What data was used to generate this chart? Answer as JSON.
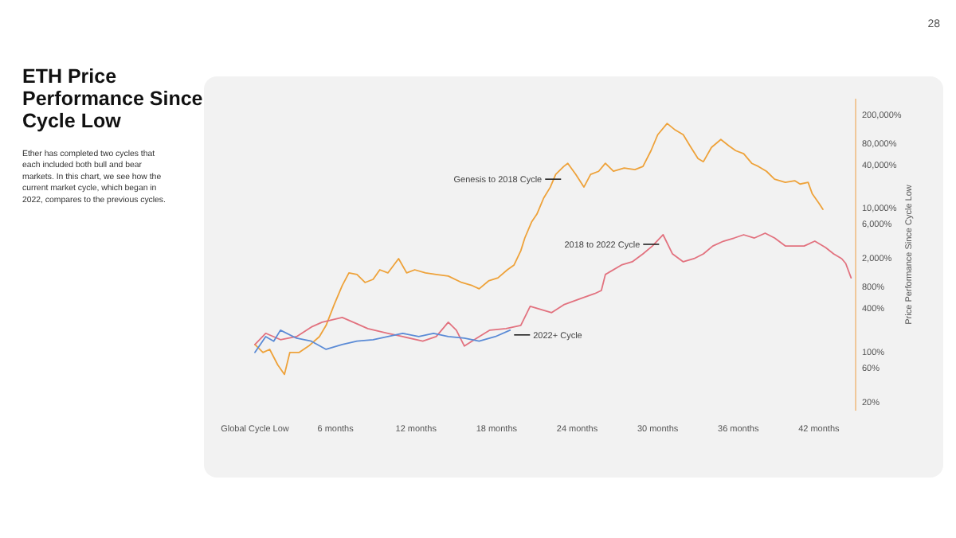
{
  "chart_data": {
    "type": "line",
    "title": "ETH Price Performance Since Cycle Low",
    "subtitle": "Ether has completed two cycles that each included both bull and bear markets. In this chart, we see how the current market cycle, which began in 2022, compares to the previous cycles.",
    "ylabel": "Price Performance Since Cycle Low",
    "log": "y",
    "grid": false,
    "marker": "none",
    "line_style": "solid",
    "xlim": [
      0,
      44.5
    ],
    "xticks": [
      {
        "value": 0,
        "label": "Global Cycle Low"
      },
      {
        "value": 6,
        "label": "6 months"
      },
      {
        "value": 12,
        "label": "12 months"
      },
      {
        "value": 18,
        "label": "18 months"
      },
      {
        "value": 24,
        "label": "24 months"
      },
      {
        "value": 30,
        "label": "30 months"
      },
      {
        "value": 36,
        "label": "36 months"
      },
      {
        "value": 42,
        "label": "42 months"
      }
    ],
    "ylim": [
      15,
      330000
    ],
    "yticks": [
      {
        "value": 20,
        "label": "20%"
      },
      {
        "value": 60,
        "label": "60%"
      },
      {
        "value": 100,
        "label": "100%"
      },
      {
        "value": 400,
        "label": "400%"
      },
      {
        "value": 800,
        "label": "800%"
      },
      {
        "value": 2000,
        "label": "2,000%"
      },
      {
        "value": 6000,
        "label": "6,000%"
      },
      {
        "value": 10000,
        "label": "10,000%"
      },
      {
        "value": 40000,
        "label": "40,000%"
      },
      {
        "value": 80000,
        "label": "80,000%"
      },
      {
        "value": 200000,
        "label": "200,000%"
      }
    ],
    "annotations": [
      "28",
      {
        "text": "Genesis to 2018 Cycle",
        "x": 22.8,
        "y": 25000
      },
      {
        "text": "2018 to 2022 Cycle",
        "x": 30.1,
        "y": 3100
      },
      {
        "text": "2022+ Cycle",
        "x": 19.3,
        "y": 170
      }
    ],
    "series": [
      {
        "color": "#eea23a",
        "x": [
          0,
          0.6,
          1.1,
          1.7,
          2.2,
          2.6,
          3.3,
          4.0,
          4.8,
          5.3,
          5.9,
          6.5,
          7.0,
          7.6,
          8.2,
          8.8,
          9.3,
          9.9,
          10.7,
          11.3,
          11.9,
          12.7,
          13.5,
          14.4,
          15.4,
          16.2,
          16.7,
          17.4,
          18.1,
          18.8,
          19.3,
          19.8,
          20.1,
          20.6,
          21.0,
          21.5,
          22.0,
          22.4,
          23.0,
          23.3,
          23.9,
          24.5,
          25.0,
          25.6,
          26.1,
          26.7,
          27.5,
          28.3,
          28.9,
          29.5,
          30.0,
          30.7,
          31.3,
          31.9,
          32.4,
          33.0,
          33.4,
          34.0,
          34.7,
          35.3,
          35.8,
          36.4,
          37.0,
          37.5,
          38.1,
          38.7,
          39.5,
          40.2,
          40.6,
          41.2,
          41.5,
          42.0,
          42.3
        ],
        "values": [
          125,
          97,
          107,
          65,
          48,
          97,
          97,
          119,
          161,
          231,
          447,
          824,
          1240,
          1180,
          912,
          1010,
          1370,
          1240,
          1960,
          1240,
          1370,
          1240,
          1180,
          1120,
          912,
          824,
          745,
          960,
          1060,
          1370,
          1600,
          2520,
          3800,
          6320,
          8150,
          13600,
          19400,
          29100,
          37600,
          41600,
          29100,
          19400,
          29100,
          32200,
          41600,
          32200,
          35700,
          34000,
          37600,
          62500,
          104000,
          149000,
          121000,
          104000,
          72800,
          48400,
          43800,
          69200,
          89300,
          72800,
          62500,
          56500,
          41600,
          37600,
          32200,
          25000,
          22600,
          23800,
          21400,
          22600,
          15800,
          11600,
          9500
        ]
      },
      {
        "color": "#e2727f",
        "x": [
          0,
          0.8,
          1.9,
          3.1,
          4.2,
          5.0,
          6.5,
          7.6,
          8.4,
          9.9,
          11.0,
          12.5,
          13.5,
          14.4,
          15.0,
          15.6,
          16.7,
          17.5,
          18.7,
          19.8,
          20.5,
          21.3,
          22.1,
          23.0,
          24.3,
          25.3,
          25.8,
          26.1,
          27.3,
          28.1,
          28.9,
          29.6,
          30.4,
          31.1,
          31.9,
          32.7,
          33.4,
          34.1,
          34.9,
          35.7,
          36.4,
          37.2,
          38.0,
          38.7,
          39.5,
          40.3,
          40.9,
          41.7,
          42.5,
          43.1,
          43.7,
          44.0,
          44.4
        ],
        "values": [
          125,
          179,
          146,
          161,
          219,
          255,
          297,
          243,
          208,
          179,
          161,
          139,
          161,
          255,
          198,
          119,
          161,
          198,
          208,
          231,
          425,
          384,
          347,
          447,
          548,
          638,
          707,
          1180,
          1600,
          1770,
          2280,
          2940,
          4210,
          2280,
          1770,
          1960,
          2280,
          2940,
          3430,
          3800,
          4210,
          3800,
          4430,
          3800,
          2940,
          2940,
          2940,
          3430,
          2800,
          2280,
          1960,
          1680,
          1060
        ]
      },
      {
        "color": "#5b8bd6",
        "x": [
          0,
          0.8,
          1.4,
          1.9,
          3.1,
          4.2,
          5.3,
          6.5,
          7.6,
          8.8,
          9.9,
          11.0,
          12.2,
          13.3,
          14.4,
          15.6,
          16.7,
          17.9,
          19.0
        ],
        "values": [
          97,
          161,
          139,
          198,
          153,
          139,
          107,
          125,
          139,
          146,
          161,
          179,
          161,
          179,
          161,
          153,
          139,
          161,
          198
        ]
      }
    ]
  }
}
